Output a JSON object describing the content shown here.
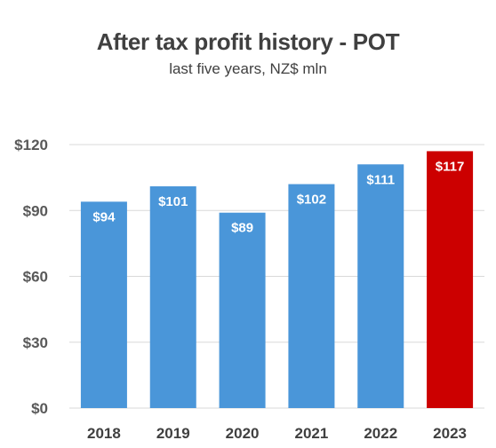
{
  "chart_data": {
    "type": "bar",
    "title": "After tax profit history - POT",
    "subtitle": "last five years, NZ$ mln",
    "categories": [
      "2018",
      "2019",
      "2020",
      "2021",
      "2022",
      "2023"
    ],
    "values": [
      94,
      101,
      89,
      102,
      111,
      117
    ],
    "data_labels": [
      "$94",
      "$101",
      "$89",
      "$102",
      "$111",
      "$117"
    ],
    "yticks": [
      0,
      30,
      60,
      90,
      120
    ],
    "ytick_labels": [
      "$0",
      "$30",
      "$60",
      "$90",
      "$120"
    ],
    "ylim": [
      0,
      120
    ],
    "grid": true,
    "colors": {
      "default_bar": "#4A96D9",
      "highlight_bar": "#CC0000",
      "gridline": "#D9D9D9"
    },
    "highlight_category": "2023"
  }
}
